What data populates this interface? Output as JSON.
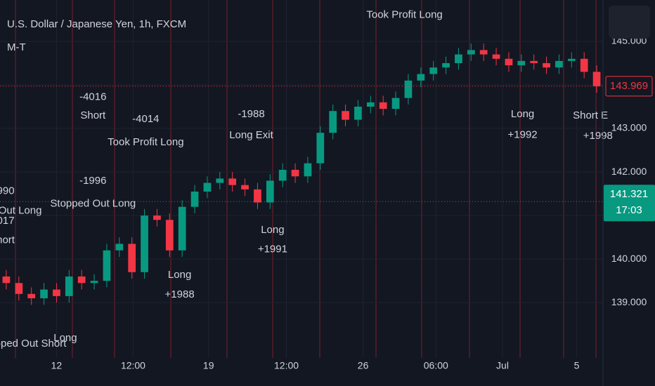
{
  "chart_data": {
    "type": "candlestick",
    "title": "U.S. Dollar / Japanese Yen, 1h, FXCM",
    "subtitle": "M-T",
    "up_color": "#089981",
    "down_color": "#f23645",
    "grid": true,
    "xlim": [
      0,
      48
    ],
    "xticks": [
      {
        "value": 4.5,
        "label": "12"
      },
      {
        "value": 10.6,
        "label": "12:00"
      },
      {
        "value": 16.6,
        "label": "19"
      },
      {
        "value": 22.8,
        "label": "12:00"
      },
      {
        "value": 28.9,
        "label": "26"
      },
      {
        "value": 34.7,
        "label": "06:00"
      },
      {
        "value": 40,
        "label": "Jul"
      },
      {
        "value": 45.9,
        "label": "5"
      }
    ],
    "ylim": [
      137.73,
      145.95
    ],
    "yticks": [
      {
        "value": 139,
        "label": "139.000"
      },
      {
        "value": 140,
        "label": "140.000"
      },
      {
        "value": 141,
        "label": "141.000"
      },
      {
        "value": 142,
        "label": "142.000"
      },
      {
        "value": 143,
        "label": "143.000"
      },
      {
        "value": 144,
        "label": "144.000"
      },
      {
        "value": 145,
        "label": "145.000"
      }
    ],
    "open": [
      139.6,
      139.45,
      139.2,
      139.1,
      139.3,
      139.15,
      139.6,
      139.45,
      139.5,
      140.2,
      140.35,
      139.7,
      141.0,
      140.9,
      140.2,
      141.2,
      141.55,
      141.75,
      141.85,
      141.7,
      141.6,
      141.3,
      141.8,
      142.05,
      141.9,
      142.2,
      142.9,
      143.4,
      143.2,
      143.5,
      143.6,
      143.45,
      143.7,
      144.1,
      144.25,
      144.4,
      144.5,
      144.7,
      144.8,
      144.7,
      144.6,
      144.45,
      144.55,
      144.5,
      144.4,
      144.55,
      144.6,
      144.3
    ],
    "high": [
      139.75,
      139.6,
      139.35,
      139.45,
      139.45,
      139.75,
      139.75,
      139.65,
      140.35,
      140.5,
      140.5,
      141.15,
      141.15,
      141.05,
      141.35,
      141.7,
      141.9,
      142.0,
      142.0,
      141.85,
      141.75,
      141.95,
      142.2,
      142.2,
      142.35,
      143.05,
      143.55,
      143.55,
      143.65,
      143.75,
      143.75,
      143.85,
      144.25,
      144.4,
      144.55,
      144.65,
      144.85,
      144.95,
      144.95,
      144.85,
      144.75,
      144.7,
      144.7,
      144.65,
      144.7,
      144.75,
      144.75,
      144.45
    ],
    "low": [
      139.3,
      139.05,
      138.95,
      138.95,
      139.0,
      139.0,
      139.3,
      139.3,
      139.35,
      140.05,
      139.55,
      139.55,
      140.75,
      140.05,
      140.05,
      141.05,
      141.4,
      141.6,
      141.55,
      141.45,
      141.15,
      141.15,
      141.65,
      141.75,
      141.75,
      142.05,
      142.75,
      143.05,
      143.05,
      143.35,
      143.3,
      143.3,
      143.55,
      143.95,
      144.1,
      144.25,
      144.35,
      144.55,
      144.55,
      144.45,
      144.3,
      144.3,
      144.35,
      144.25,
      144.25,
      144.4,
      144.15,
      143.82
    ],
    "close": [
      139.45,
      139.2,
      139.1,
      139.3,
      139.15,
      139.6,
      139.45,
      139.5,
      140.2,
      140.35,
      139.7,
      141.0,
      140.9,
      140.2,
      141.2,
      141.55,
      141.75,
      141.85,
      141.7,
      141.6,
      141.3,
      141.8,
      142.05,
      141.9,
      142.2,
      142.9,
      143.4,
      143.2,
      143.5,
      143.6,
      143.45,
      143.7,
      144.1,
      144.25,
      144.4,
      144.5,
      144.7,
      144.8,
      144.7,
      144.6,
      144.45,
      144.55,
      144.5,
      144.4,
      144.55,
      144.6,
      144.3,
      143.97
    ],
    "annotations": [
      {
        "text": "Took Profit Long",
        "x": 32.2,
        "y": 145.6
      },
      {
        "text": "-4016",
        "x": 7.4,
        "y": 143.72
      },
      {
        "text": "Short",
        "x": 7.4,
        "y": 143.29
      },
      {
        "text": "-4014",
        "x": 11.6,
        "y": 143.21
      },
      {
        "text": "Took Profit Long",
        "x": 11.6,
        "y": 142.68
      },
      {
        "text": "-1988",
        "x": 20.0,
        "y": 143.32
      },
      {
        "text": "Long Exit",
        "x": 20.0,
        "y": 142.84
      },
      {
        "text": "-1996",
        "x": 7.4,
        "y": 141.79
      },
      {
        "text": "Stopped Out Long",
        "x": 7.4,
        "y": 141.27
      },
      {
        "text": "Long",
        "x": 21.7,
        "y": 140.66
      },
      {
        "text": "+1991",
        "x": 21.7,
        "y": 140.22
      },
      {
        "text": "Long",
        "x": 14.3,
        "y": 139.63
      },
      {
        "text": "+1988",
        "x": 14.3,
        "y": 139.18
      },
      {
        "text": "Long",
        "x": 41.6,
        "y": 143.32
      },
      {
        "text": "+1992",
        "x": 41.6,
        "y": 142.85
      },
      {
        "text": "Short E",
        "x": 47.0,
        "y": 143.29
      },
      {
        "text": "+1998",
        "x": 47.6,
        "y": 142.82
      },
      {
        "text": "Long",
        "x": 5.2,
        "y": 138.18
      },
      {
        "text": "opped Out Short",
        "x": 2.2,
        "y": 138.05
      },
      {
        "text": "Out Long",
        "x": 1.6,
        "y": 141.11
      },
      {
        "text": "990",
        "x": 0.45,
        "y": 141.56
      },
      {
        "text": "017",
        "x": 0.45,
        "y": 140.87
      },
      {
        "text": "hort",
        "x": 0.45,
        "y": 140.43
      }
    ],
    "price_labels": [
      {
        "value": 143.969,
        "color": "#f23645"
      },
      {
        "value": 141.321,
        "color": "#089981",
        "countdown": "17:03"
      }
    ]
  }
}
